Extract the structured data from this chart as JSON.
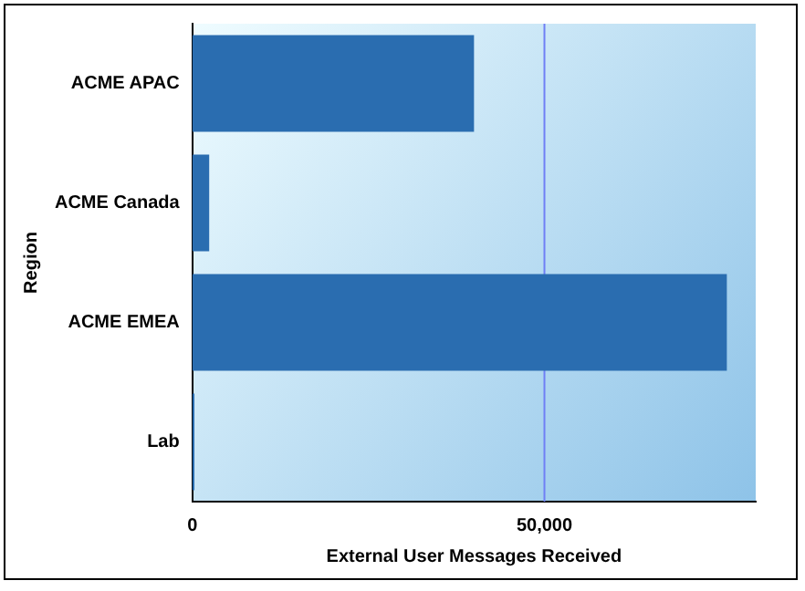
{
  "chart_data": {
    "type": "bar",
    "orientation": "horizontal",
    "xlabel": "External User Messages Received",
    "ylabel": "Region",
    "categories": [
      "ACME APAC",
      "ACME Canada",
      "ACME EMEA",
      "Lab"
    ],
    "values": [
      40000,
      2400,
      75900,
      300
    ],
    "color": "#2a6db0",
    "xlim": [
      0,
      80000
    ],
    "xticks": [
      0,
      {
        "value": 50000,
        "label": "50,000"
      }
    ],
    "ref_lines": [
      {
        "axis": "x",
        "value": 50000,
        "color": "#6f7ff5"
      }
    ]
  }
}
